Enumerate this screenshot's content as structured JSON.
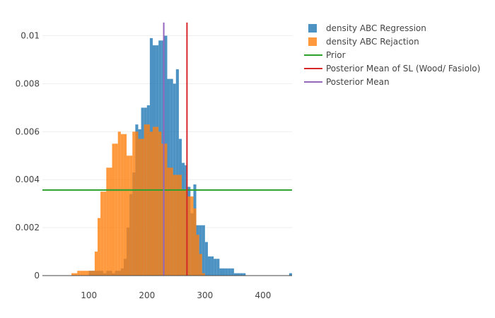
{
  "chart_data": {
    "type": "bar",
    "barmode": "overlay",
    "xlabel": "",
    "ylabel": "",
    "xlim": [
      20,
      450
    ],
    "ylim": [
      0,
      0.0109
    ],
    "x_ticks": [
      100,
      200,
      300,
      400
    ],
    "x_tick_labels": [
      "100",
      "200",
      "300",
      "400"
    ],
    "y_ticks": [
      0,
      0.002,
      0.004,
      0.006,
      0.008,
      0.01
    ],
    "y_tick_labels": [
      "0",
      "0.002",
      "0.004",
      "0.006",
      "0.008",
      "0.01"
    ],
    "grid": "horizontal",
    "legend_position": "top-right",
    "bin_width": 5,
    "series": [
      {
        "name": "density ABC Regression",
        "kind": "histogram",
        "color": "#1f77b4",
        "opacity": 0.8,
        "bins": [
          [
            100,
            0.0002
          ],
          [
            105,
            0.0002
          ],
          [
            110,
            0.0002
          ],
          [
            115,
            0.0002
          ],
          [
            120,
            0.0002
          ],
          [
            125,
            0.0001
          ],
          [
            130,
            0.0002
          ],
          [
            135,
            0.0002
          ],
          [
            140,
            0.0001
          ],
          [
            145,
            0.0002
          ],
          [
            150,
            0.0002
          ],
          [
            155,
            0.0003
          ],
          [
            160,
            0.0007
          ],
          [
            165,
            0.002
          ],
          [
            170,
            0.0034
          ],
          [
            175,
            0.0043
          ],
          [
            180,
            0.0063
          ],
          [
            185,
            0.0061
          ],
          [
            190,
            0.007
          ],
          [
            195,
            0.007
          ],
          [
            200,
            0.0071
          ],
          [
            205,
            0.0099
          ],
          [
            210,
            0.0096
          ],
          [
            215,
            0.0096
          ],
          [
            220,
            0.0098
          ],
          [
            225,
            0.0098
          ],
          [
            230,
            0.01
          ],
          [
            235,
            0.0082
          ],
          [
            240,
            0.0082
          ],
          [
            245,
            0.008
          ],
          [
            250,
            0.0086
          ],
          [
            255,
            0.0057
          ],
          [
            260,
            0.0047
          ],
          [
            265,
            0.0046
          ],
          [
            270,
            0.0037
          ],
          [
            275,
            0.0026
          ],
          [
            280,
            0.0038
          ],
          [
            285,
            0.0021
          ],
          [
            290,
            0.0021
          ],
          [
            295,
            0.0021
          ],
          [
            300,
            0.0014
          ],
          [
            305,
            0.0008
          ],
          [
            310,
            0.0008
          ],
          [
            315,
            0.0007
          ],
          [
            320,
            0.0007
          ],
          [
            325,
            0.0003
          ],
          [
            330,
            0.0003
          ],
          [
            335,
            0.0003
          ],
          [
            340,
            0.0003
          ],
          [
            345,
            0.0003
          ],
          [
            350,
            0.0001
          ],
          [
            355,
            0.0001
          ],
          [
            360,
            0.0001
          ],
          [
            365,
            0.0001
          ],
          [
            445,
            0.0001
          ]
        ]
      },
      {
        "name": "density ABC Rejaction",
        "kind": "histogram",
        "color": "#ff7f0e",
        "opacity": 0.8,
        "bins": [
          [
            70,
            0.0001
          ],
          [
            75,
            0.0001
          ],
          [
            80,
            0.0002
          ],
          [
            85,
            0.0002
          ],
          [
            90,
            0.0002
          ],
          [
            95,
            0.0002
          ],
          [
            100,
            0.0002
          ],
          [
            105,
            0.0002
          ],
          [
            110,
            0.001
          ],
          [
            115,
            0.0024
          ],
          [
            120,
            0.0035
          ],
          [
            125,
            0.0035
          ],
          [
            130,
            0.0045
          ],
          [
            135,
            0.0045
          ],
          [
            140,
            0.0055
          ],
          [
            145,
            0.0055
          ],
          [
            150,
            0.006
          ],
          [
            155,
            0.0059
          ],
          [
            160,
            0.0059
          ],
          [
            165,
            0.005
          ],
          [
            170,
            0.005
          ],
          [
            175,
            0.006
          ],
          [
            180,
            0.006
          ],
          [
            185,
            0.0057
          ],
          [
            190,
            0.0057
          ],
          [
            195,
            0.0063
          ],
          [
            200,
            0.0063
          ],
          [
            205,
            0.006
          ],
          [
            210,
            0.0062
          ],
          [
            215,
            0.0062
          ],
          [
            220,
            0.006
          ],
          [
            225,
            0.0055
          ],
          [
            230,
            0.0055
          ],
          [
            235,
            0.0045
          ],
          [
            240,
            0.0045
          ],
          [
            245,
            0.0042
          ],
          [
            250,
            0.0042
          ],
          [
            255,
            0.0042
          ],
          [
            260,
            0.0036
          ],
          [
            265,
            0.0036
          ],
          [
            270,
            0.0033
          ],
          [
            275,
            0.0033
          ],
          [
            280,
            0.0028
          ],
          [
            285,
            0.0017
          ],
          [
            290,
            0.0009
          ],
          [
            295,
            0.0001
          ]
        ]
      },
      {
        "name": "Prior",
        "kind": "hline",
        "color": "#2ca02c",
        "y": 0.00357
      },
      {
        "name": "Posterior Mean of SL (Wood/ Fasiolo)",
        "kind": "vline",
        "color": "#d62728",
        "x": 269,
        "y_top": 0.01055
      },
      {
        "name": "Posterior Mean",
        "kind": "vline",
        "color": "#9467bd",
        "x": 229,
        "y_top": 0.01055
      }
    ]
  }
}
